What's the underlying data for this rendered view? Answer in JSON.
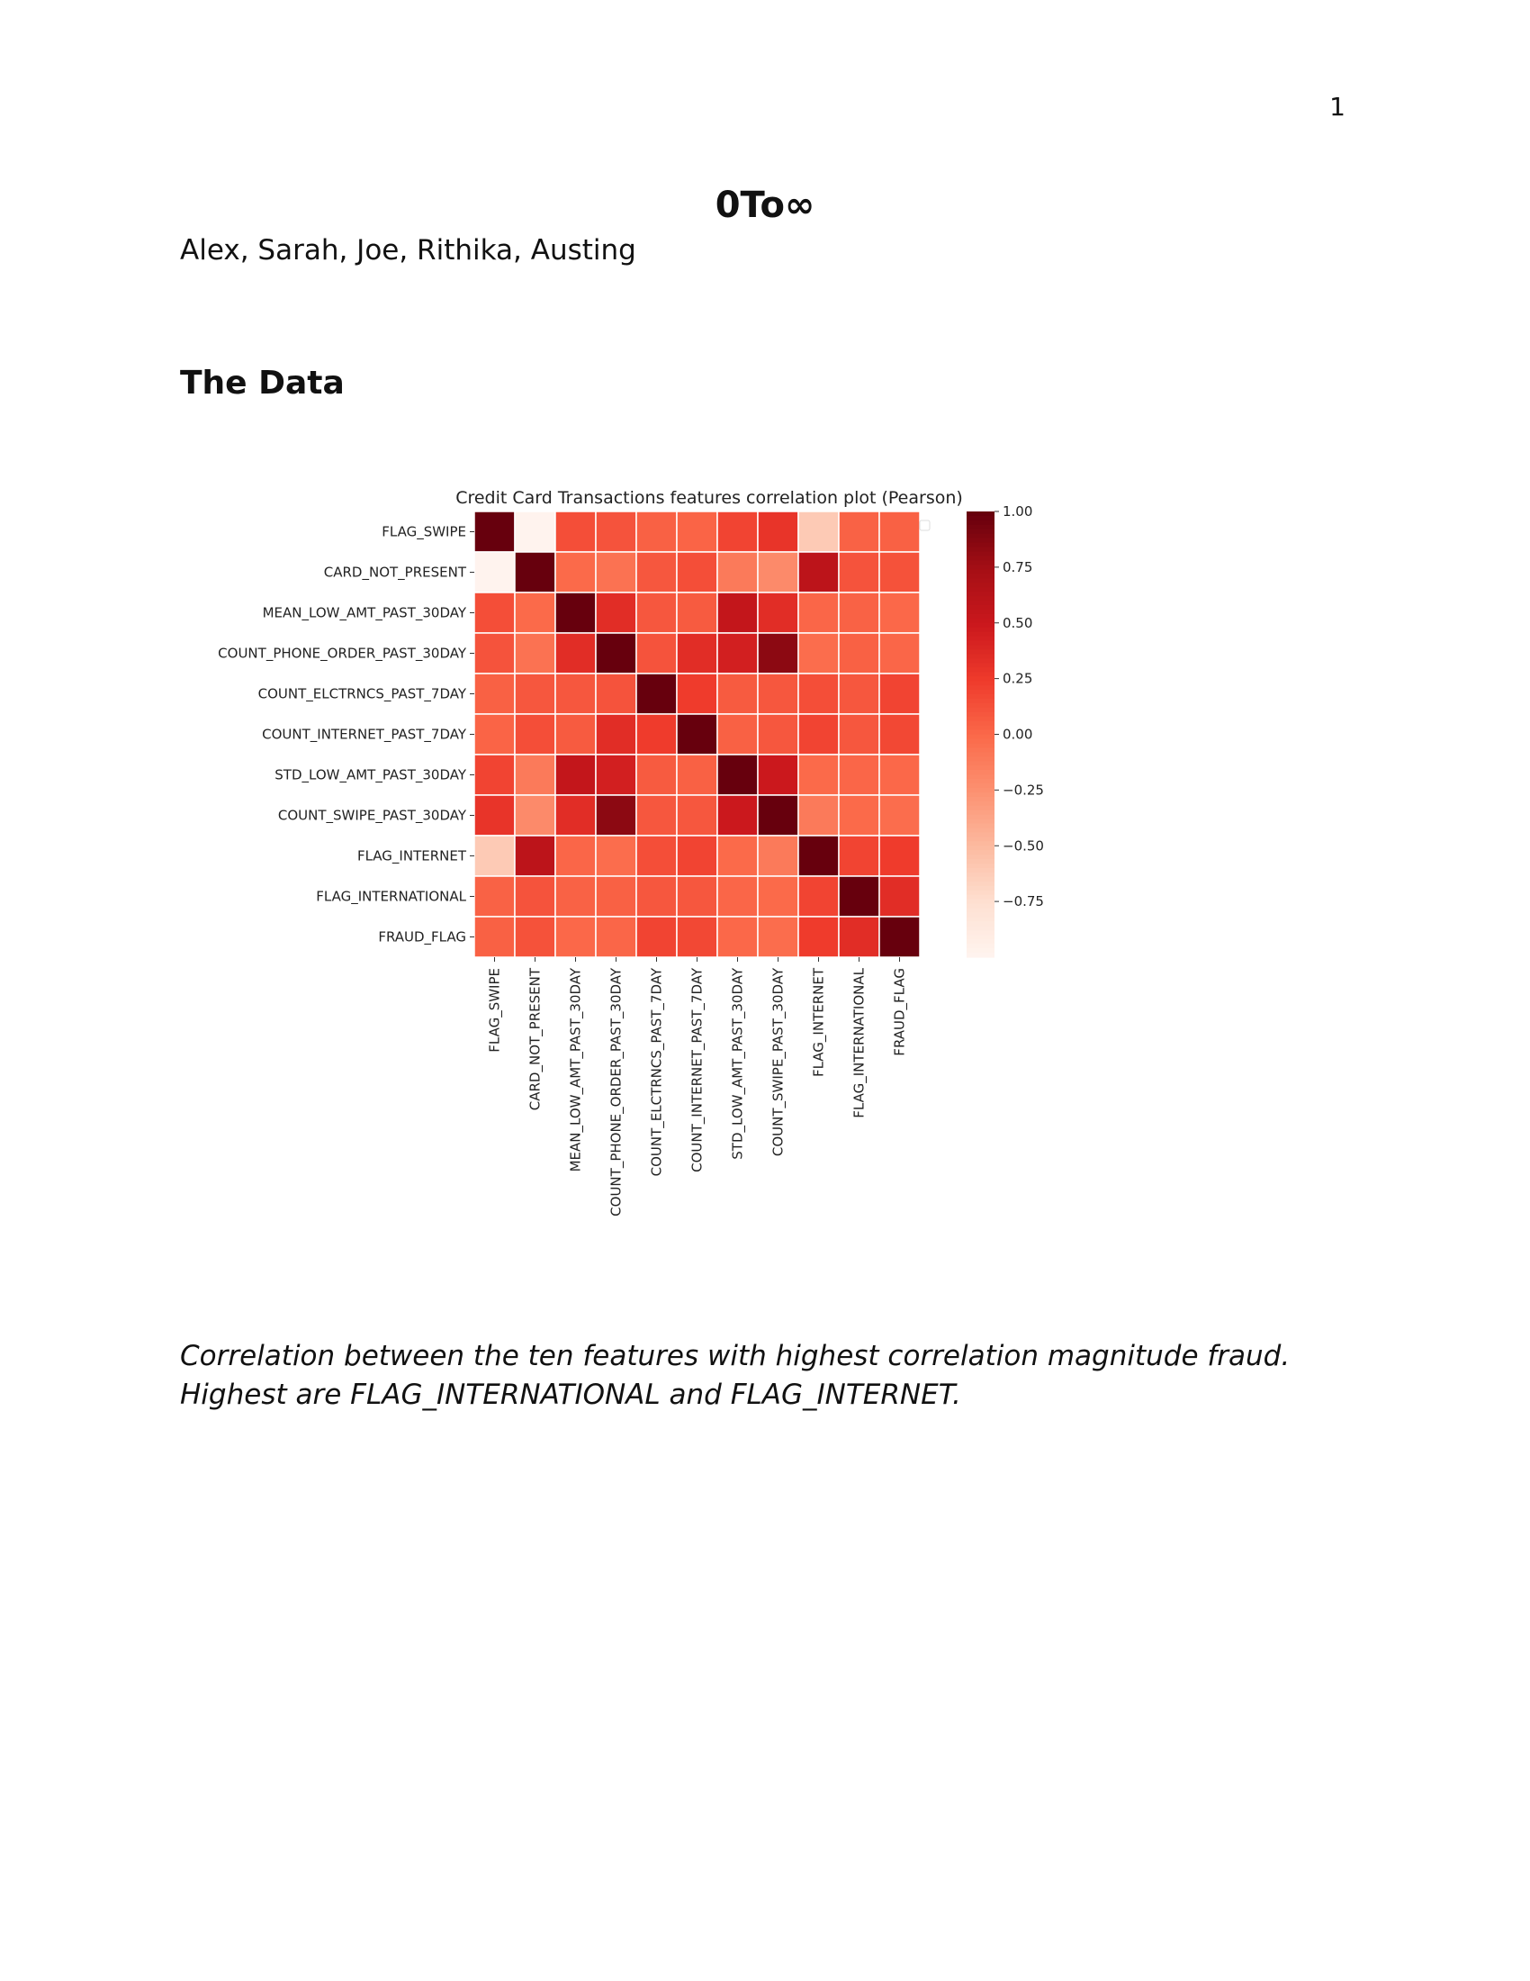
{
  "page": {
    "number": "1",
    "title": "0To∞",
    "authors": "Alex, Sarah, Joe, Rithika, Austing",
    "section_heading": "The Data",
    "caption": "Correlation between the ten features with highest correlation magnitude fraud. Highest are FLAG_INTERNATIONAL and FLAG_INTERNET."
  },
  "chart_data": {
    "type": "heatmap",
    "title": "Credit Card Transactions features correlation plot (Pearson)",
    "colormap": "Reds",
    "vmin": -1.0,
    "vmax": 1.0,
    "colorbar_ticks": [
      "1.00",
      "0.75",
      "0.50",
      "0.25",
      "0.00",
      "−0.25",
      "−0.50",
      "−0.75"
    ],
    "colorbar_tick_values": [
      1.0,
      0.75,
      0.5,
      0.25,
      0.0,
      -0.25,
      -0.5,
      -0.75
    ],
    "labels": [
      "FLAG_SWIPE",
      "CARD_NOT_PRESENT",
      "MEAN_LOW_AMT_PAST_30DAY",
      "COUNT_PHONE_ORDER_PAST_30DAY",
      "COUNT_ELCTRNCS_PAST_7DAY",
      "COUNT_INTERNET_PAST_7DAY",
      "STD_LOW_AMT_PAST_30DAY",
      "COUNT_SWIPE_PAST_30DAY",
      "FLAG_INTERNET",
      "FLAG_INTERNATIONAL",
      "FRAUD_FLAG"
    ],
    "matrix": [
      [
        1.0,
        -0.98,
        0.15,
        0.12,
        0.05,
        0.03,
        0.2,
        0.3,
        -0.6,
        0.04,
        0.05
      ],
      [
        -0.98,
        1.0,
        0.0,
        -0.05,
        0.1,
        0.15,
        -0.1,
        -0.2,
        0.6,
        0.12,
        0.13
      ],
      [
        0.15,
        0.0,
        1.0,
        0.35,
        0.1,
        0.08,
        0.55,
        0.35,
        0.02,
        0.04,
        0.01
      ],
      [
        0.12,
        -0.05,
        0.35,
        1.0,
        0.12,
        0.35,
        0.45,
        0.85,
        -0.02,
        0.05,
        0.02
      ],
      [
        0.05,
        0.1,
        0.1,
        0.12,
        1.0,
        0.25,
        0.08,
        0.1,
        0.15,
        0.1,
        0.2
      ],
      [
        0.03,
        0.15,
        0.08,
        0.35,
        0.25,
        1.0,
        0.05,
        0.1,
        0.2,
        0.1,
        0.18
      ],
      [
        0.2,
        -0.1,
        0.55,
        0.45,
        0.08,
        0.05,
        1.0,
        0.5,
        0.0,
        0.02,
        0.01
      ],
      [
        0.3,
        -0.2,
        0.35,
        0.85,
        0.1,
        0.1,
        0.5,
        1.0,
        -0.1,
        0.0,
        -0.02
      ],
      [
        -0.6,
        0.6,
        0.02,
        -0.02,
        0.15,
        0.2,
        0.0,
        -0.1,
        1.0,
        0.2,
        0.25
      ],
      [
        0.04,
        0.12,
        0.04,
        0.05,
        0.1,
        0.1,
        0.02,
        0.0,
        0.2,
        1.0,
        0.35
      ],
      [
        0.05,
        0.13,
        0.01,
        0.02,
        0.2,
        0.18,
        0.01,
        -0.02,
        0.25,
        0.35,
        1.0
      ]
    ],
    "legend": "top-right (empty)",
    "grid": "white cell borders"
  }
}
